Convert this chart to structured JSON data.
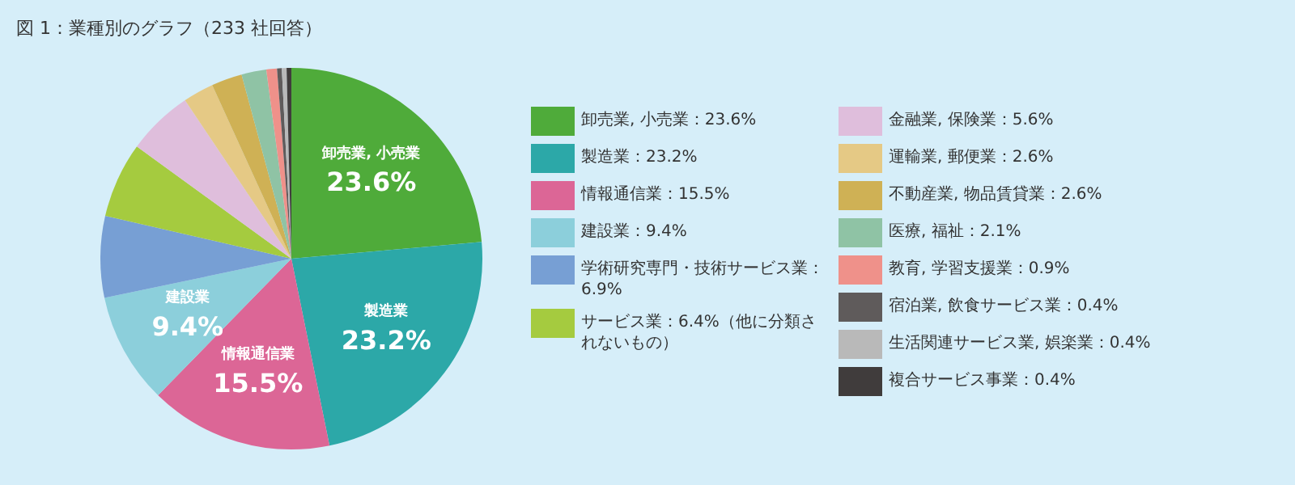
{
  "chart_data": {
    "type": "pie",
    "title": "図 1：業種別のグラフ（233 社回答）",
    "categories": [
      "卸売業, 小売業：23.6%",
      "製造業：23.2%",
      "情報通信業：15.5%",
      "建設業：9.4%",
      "学術研究専門・技術サービス業：6.9%",
      "サービス業：6.4%（他に分類されないもの）",
      "金融業, 保険業：5.6%",
      "運輸業, 郵便業：2.6%",
      "不動産業, 物品賃貸業：2.6%",
      "医療, 福祉：2.1%",
      "教育, 学習支援業：0.9%",
      "宿泊業, 飲食サービス業：0.4%",
      "生活関連サービス業, 娯楽業：0.4%",
      "複合サービス事業：0.4%"
    ],
    "values": [
      23.6,
      23.2,
      15.5,
      9.4,
      6.9,
      6.4,
      5.6,
      2.6,
      2.6,
      2.1,
      0.9,
      0.4,
      0.4,
      0.4
    ],
    "colors": [
      "#4fab3a",
      "#2ca8a8",
      "#dc6696",
      "#8ccfdb",
      "#779fd4",
      "#a5cb3f",
      "#dfbedc",
      "#e5c985",
      "#cfb155",
      "#8fc3a5",
      "#ef918a",
      "#5f5b5b",
      "#b9b9b9",
      "#403c3c"
    ],
    "annotations": [
      {
        "text": "卸売業, 小売業\n23.6%",
        "x": "卸売業, 小売業：23.6%"
      },
      {
        "text": "製造業\n23.2%",
        "x": "製造業：23.2%"
      },
      {
        "text": "情報通信業\n15.5%",
        "x": "情報通信業：15.5%"
      },
      {
        "text": "建設業\n9.4%",
        "x": "建設業：9.4%"
      }
    ],
    "legend": "right"
  }
}
